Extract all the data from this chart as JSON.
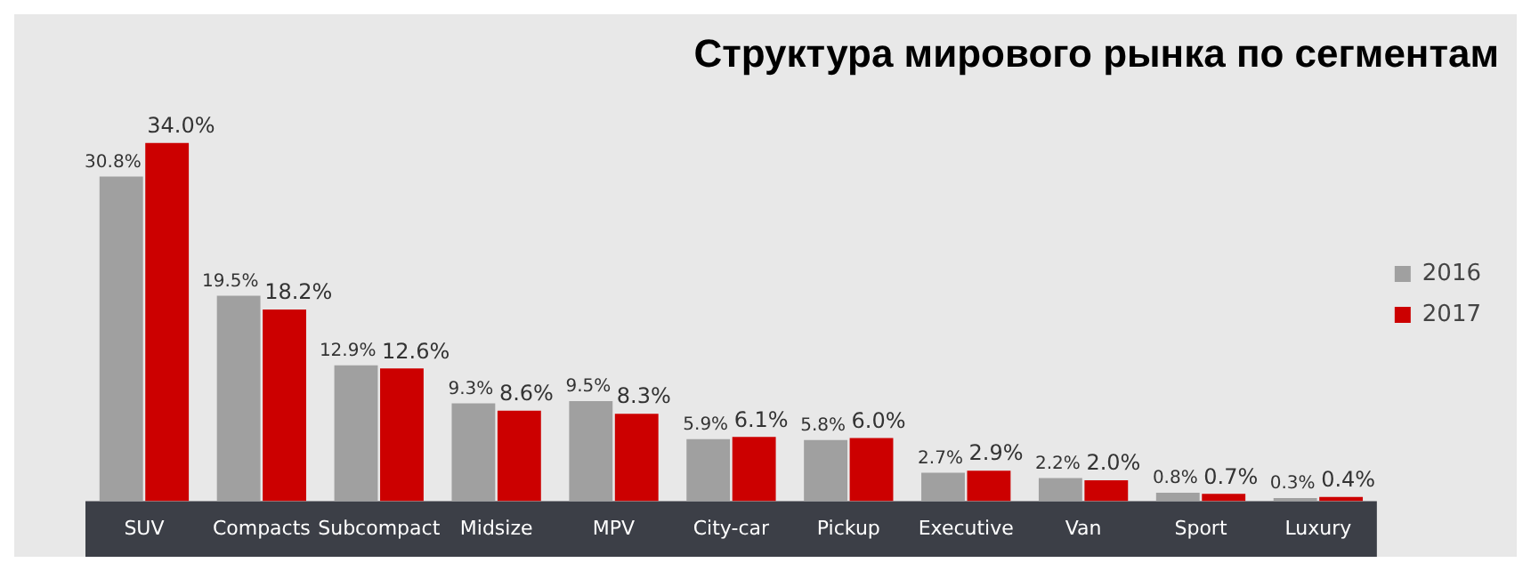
{
  "chart_data": {
    "type": "bar",
    "title": "Структура мирового рынка по сегментам",
    "categories": [
      "SUV",
      "Compacts",
      "Subcompact",
      "Midsize",
      "MPV",
      "City-car",
      "Pickup",
      "Executive",
      "Van",
      "Sport",
      "Luxury"
    ],
    "series": [
      {
        "name": "2016",
        "color": "#a0a0a0",
        "values": [
          30.8,
          19.5,
          12.9,
          9.3,
          9.5,
          5.9,
          5.8,
          2.7,
          2.2,
          0.8,
          0.3
        ],
        "value_labels": [
          "30.8%",
          "19.5%",
          "12.9%",
          "9.3%",
          "9.5%",
          "5.9%",
          "5.8%",
          "2.7%",
          "2.2%",
          "0.8%",
          "0.3%"
        ]
      },
      {
        "name": "2017",
        "color": "#cc0000",
        "values": [
          34.0,
          18.2,
          12.6,
          8.6,
          8.3,
          6.1,
          6.0,
          2.9,
          2.0,
          0.7,
          0.4
        ],
        "value_labels": [
          "34.0%",
          "18.2%",
          "12.6%",
          "8.6%",
          "8.3%",
          "6.1%",
          "6.0%",
          "2.9%",
          "2.0%",
          "0.7%",
          "0.4%"
        ]
      }
    ],
    "legend": "right",
    "grid": false
  }
}
